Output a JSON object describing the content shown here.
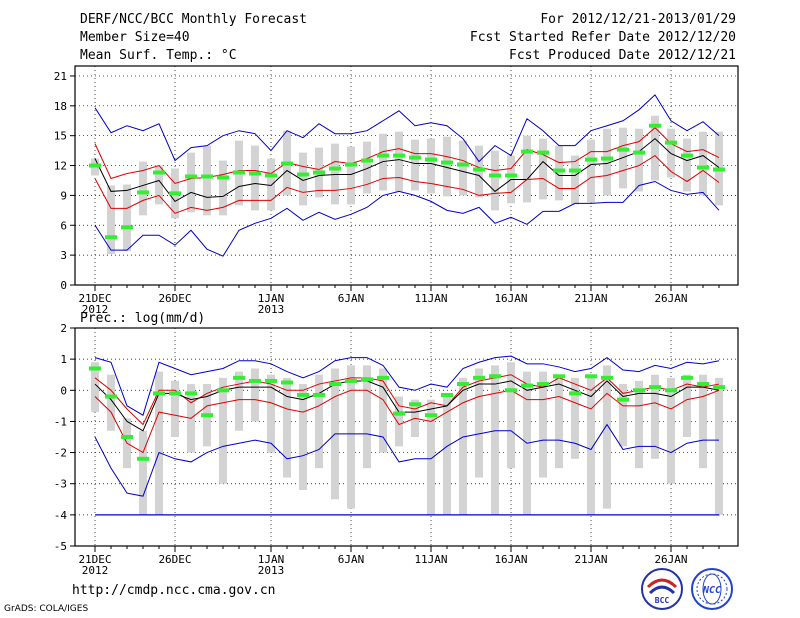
{
  "header": {
    "title": "DERF/NCC/BCC Monthly Forecast",
    "member_size": "Member Size=40",
    "variable": "Mean Surf. Temp.: °C",
    "period": "For 2012/12/21-2013/01/29",
    "start_date": "Fcst Started Refer Date 2012/12/20",
    "produced_date": "Fcst Produced Date 2012/12/21"
  },
  "footer": {
    "url": "http://cmdp.ncc.cma.gov.cn",
    "credit": "GrADS: COLA/IGES",
    "logo_bcc": "BCC",
    "logo_ncc": "NCC"
  },
  "colors": {
    "box": "#d3d3d3",
    "outer": "#0000cc",
    "inner": "#e00000",
    "median": "#000000",
    "obs": "#33ee33"
  },
  "chart_data": [
    {
      "type": "box",
      "title": "Mean Surf. Temp.: °C",
      "xlabel": "",
      "ylabel": "Mean Surf. Temp. (°C)",
      "days": 40,
      "ylim": [
        0,
        22
      ],
      "yticks": [
        0,
        3,
        6,
        9,
        12,
        15,
        18,
        21
      ],
      "xticks": [
        {
          "day": 0,
          "label": "21DEC",
          "sub": "2012"
        },
        {
          "day": 5,
          "label": "26DEC",
          "sub": ""
        },
        {
          "day": 11,
          "label": "1JAN",
          "sub": "2013"
        },
        {
          "day": 16,
          "label": "6JAN",
          "sub": ""
        },
        {
          "day": 21,
          "label": "11JAN",
          "sub": ""
        },
        {
          "day": 26,
          "label": "16JAN",
          "sub": ""
        },
        {
          "day": 31,
          "label": "21JAN",
          "sub": ""
        },
        {
          "day": 36,
          "label": "26JAN",
          "sub": ""
        }
      ],
      "grid": true,
      "series": [
        {
          "name": "max",
          "values": [
            17.8,
            15.3,
            16.0,
            15.5,
            16.2,
            12.5,
            13.8,
            14.0,
            15.0,
            15.5,
            15.2,
            13.5,
            15.5,
            14.8,
            16.2,
            15.2,
            15.2,
            15.5,
            16.5,
            17.5,
            16.0,
            16.3,
            16.0,
            14.7,
            12.4,
            14.0,
            13.0,
            16.7,
            15.5,
            14.0,
            14.0,
            15.5,
            16.0,
            16.5,
            17.6,
            19.1,
            16.5,
            15.5,
            16.4,
            15.0
          ]
        },
        {
          "name": "upper_inner",
          "values": [
            14.2,
            10.7,
            11.2,
            11.5,
            12.0,
            10.2,
            10.7,
            10.8,
            11.1,
            11.5,
            11.5,
            11.2,
            12.3,
            11.9,
            11.6,
            12.4,
            12.2,
            12.7,
            13.4,
            13.7,
            13.2,
            13.2,
            12.9,
            12.5,
            11.8,
            11.5,
            11.7,
            13.6,
            13.1,
            12.3,
            12.4,
            13.4,
            13.4,
            14.0,
            14.4,
            15.8,
            14.2,
            13.4,
            13.6,
            12.8
          ]
        },
        {
          "name": "median",
          "values": [
            12.7,
            9.4,
            9.5,
            10.0,
            10.5,
            8.4,
            9.3,
            8.8,
            8.9,
            9.9,
            10.2,
            10.0,
            11.5,
            10.5,
            11.0,
            11.1,
            11.1,
            11.7,
            12.4,
            12.6,
            12.2,
            12.2,
            11.8,
            11.4,
            11.0,
            9.4,
            10.6,
            10.6,
            12.4,
            11.0,
            11.0,
            12.1,
            12.2,
            12.8,
            13.4,
            14.7,
            13.2,
            12.5,
            13.0,
            11.8
          ]
        },
        {
          "name": "lower_inner",
          "values": [
            10.7,
            7.7,
            7.7,
            8.5,
            9.0,
            7.2,
            7.8,
            7.5,
            7.8,
            8.5,
            8.5,
            8.5,
            9.8,
            9.3,
            9.5,
            9.5,
            9.7,
            10.1,
            10.7,
            10.8,
            10.4,
            10.2,
            9.9,
            9.6,
            9.0,
            9.2,
            9.3,
            10.6,
            10.7,
            9.7,
            9.7,
            10.8,
            11.0,
            11.5,
            12.0,
            13.0,
            11.4,
            10.4,
            11.5,
            10.3
          ]
        },
        {
          "name": "min",
          "values": [
            6.0,
            3.5,
            3.5,
            5.0,
            5.0,
            4.0,
            5.5,
            3.6,
            2.9,
            5.5,
            6.2,
            6.7,
            7.7,
            6.5,
            7.3,
            6.6,
            7.1,
            7.8,
            9.0,
            9.4,
            9.0,
            8.4,
            7.5,
            7.2,
            7.8,
            6.2,
            6.8,
            6.1,
            7.4,
            7.4,
            8.2,
            8.2,
            8.3,
            8.3,
            10.0,
            10.4,
            9.5,
            9.1,
            9.3,
            7.5
          ]
        }
      ],
      "boxes": [
        {
          "low": 11.0,
          "high": 12.7
        },
        {
          "low": 3.1,
          "high": 10.0
        },
        {
          "low": 3.4,
          "high": 10.1
        },
        {
          "low": 7.0,
          "high": 12.4
        },
        {
          "low": 8.1,
          "high": 12.0
        },
        {
          "low": 6.7,
          "high": 11.7
        },
        {
          "low": 7.3,
          "high": 13.3
        },
        {
          "low": 7.0,
          "high": 14.0
        },
        {
          "low": 7.0,
          "high": 12.5
        },
        {
          "low": 8.0,
          "high": 14.5
        },
        {
          "low": 7.5,
          "high": 14.0
        },
        {
          "low": 7.5,
          "high": 12.7
        },
        {
          "low": 9.0,
          "high": 15.5
        },
        {
          "low": 8.0,
          "high": 13.3
        },
        {
          "low": 8.8,
          "high": 13.8
        },
        {
          "low": 8.1,
          "high": 14.2
        },
        {
          "low": 8.1,
          "high": 13.9
        },
        {
          "low": 9.2,
          "high": 14.4
        },
        {
          "low": 9.5,
          "high": 15.2
        },
        {
          "low": 9.4,
          "high": 15.4
        },
        {
          "low": 9.5,
          "high": 14.6
        },
        {
          "low": 9.2,
          "high": 14.7
        },
        {
          "low": 8.9,
          "high": 14.9
        },
        {
          "low": 9.0,
          "high": 14.5
        },
        {
          "low": 8.8,
          "high": 14.0
        },
        {
          "low": 7.5,
          "high": 13.5
        },
        {
          "low": 8.2,
          "high": 13.0
        },
        {
          "low": 8.3,
          "high": 15.0
        },
        {
          "low": 8.6,
          "high": 14.7
        },
        {
          "low": 8.5,
          "high": 14.0
        },
        {
          "low": 8.1,
          "high": 13.0
        },
        {
          "low": 8.3,
          "high": 14.6
        },
        {
          "low": 9.0,
          "high": 15.7
        },
        {
          "low": 9.7,
          "high": 15.8
        },
        {
          "low": 9.4,
          "high": 15.7
        },
        {
          "low": 10.5,
          "high": 17.0
        },
        {
          "low": 10.8,
          "high": 15.7
        },
        {
          "low": 9.4,
          "high": 14.7
        },
        {
          "low": 9.0,
          "high": 15.4
        },
        {
          "low": 8.0,
          "high": 15.4
        }
      ],
      "observed": [
        12.0,
        4.8,
        5.8,
        9.3,
        11.3,
        9.2,
        10.9,
        10.9,
        10.8,
        11.3,
        11.2,
        11.0,
        12.2,
        11.1,
        11.3,
        11.7,
        12.1,
        12.5,
        13.0,
        13.0,
        12.8,
        12.6,
        12.3,
        12.1,
        11.6,
        11.0,
        11.0,
        13.4,
        13.3,
        11.5,
        11.5,
        12.6,
        12.7,
        13.6,
        13.3,
        16.0,
        14.3,
        13.0,
        11.8,
        11.6
      ]
    },
    {
      "type": "box",
      "title": "Prec.: log(mm/d)",
      "xlabel": "",
      "ylabel": "log(mm/d)",
      "days": 40,
      "ylim": [
        -5,
        2
      ],
      "yticks": [
        -5,
        -4,
        -3,
        -2,
        -1,
        0,
        1,
        2
      ],
      "xticks": [
        {
          "day": 0,
          "label": "21DEC",
          "sub": "2012"
        },
        {
          "day": 5,
          "label": "26DEC",
          "sub": ""
        },
        {
          "day": 11,
          "label": "1JAN",
          "sub": "2013"
        },
        {
          "day": 16,
          "label": "6JAN",
          "sub": ""
        },
        {
          "day": 21,
          "label": "11JAN",
          "sub": ""
        },
        {
          "day": 26,
          "label": "16JAN",
          "sub": ""
        },
        {
          "day": 31,
          "label": "21JAN",
          "sub": ""
        },
        {
          "day": 36,
          "label": "26JAN",
          "sub": ""
        }
      ],
      "grid": true,
      "series": [
        {
          "name": "max",
          "values": [
            1.05,
            0.9,
            -0.5,
            -0.8,
            0.9,
            0.7,
            0.5,
            0.6,
            0.7,
            0.95,
            0.95,
            0.85,
            0.6,
            0.4,
            0.6,
            0.95,
            1.05,
            1.05,
            0.8,
            0.1,
            0.0,
            0.2,
            0.1,
            0.7,
            0.9,
            1.05,
            1.1,
            0.85,
            0.85,
            0.75,
            0.6,
            0.7,
            1.05,
            0.65,
            0.6,
            0.8,
            0.7,
            0.9,
            0.85,
            0.95
          ]
        },
        {
          "name": "upper_inner",
          "values": [
            0.4,
            0.0,
            -0.6,
            -1.1,
            0.0,
            0.0,
            -0.4,
            -0.1,
            0.1,
            0.2,
            0.3,
            0.2,
            0.0,
            0.0,
            0.2,
            0.3,
            0.4,
            0.4,
            0.3,
            -0.5,
            -0.6,
            -0.4,
            -0.5,
            0.1,
            0.3,
            0.4,
            0.5,
            0.2,
            0.1,
            0.4,
            0.2,
            0.0,
            0.4,
            -0.1,
            0.0,
            0.1,
            0.0,
            0.2,
            0.1,
            0.2
          ]
        },
        {
          "name": "median",
          "values": [
            0.2,
            -0.3,
            -1.0,
            -1.3,
            -0.1,
            -0.1,
            -0.3,
            -0.2,
            0.0,
            0.1,
            0.1,
            0.1,
            -0.2,
            -0.3,
            -0.1,
            0.2,
            0.3,
            0.3,
            0.1,
            -0.7,
            -0.7,
            -0.6,
            -0.5,
            0.0,
            0.2,
            0.2,
            0.3,
            0.0,
            0.1,
            0.2,
            0.0,
            -0.2,
            0.3,
            -0.2,
            -0.1,
            -0.1,
            -0.2,
            0.1,
            0.1,
            0.0
          ]
        },
        {
          "name": "lower_inner",
          "values": [
            -0.2,
            -0.7,
            -1.7,
            -2.0,
            -0.7,
            -0.8,
            -0.9,
            -0.5,
            -0.4,
            -0.3,
            -0.3,
            -0.4,
            -0.6,
            -0.7,
            -0.5,
            -0.2,
            0.0,
            0.0,
            -0.3,
            -1.1,
            -0.9,
            -1.0,
            -0.7,
            -0.4,
            -0.2,
            -0.1,
            0.0,
            -0.3,
            -0.3,
            -0.2,
            -0.4,
            -0.6,
            -0.1,
            -0.5,
            -0.5,
            -0.4,
            -0.6,
            -0.3,
            -0.2,
            0.0
          ]
        },
        {
          "name": "min",
          "values": [
            -1.5,
            -2.5,
            -3.3,
            -3.4,
            -2.0,
            -2.2,
            -2.3,
            -2.0,
            -1.8,
            -1.7,
            -1.6,
            -1.7,
            -2.2,
            -2.1,
            -1.9,
            -1.4,
            -1.4,
            -1.4,
            -1.5,
            -2.3,
            -2.2,
            -2.2,
            -1.8,
            -1.5,
            -1.4,
            -1.3,
            -1.3,
            -1.7,
            -1.6,
            -1.6,
            -1.7,
            -1.9,
            -1.1,
            -1.9,
            -1.8,
            -1.8,
            -2.0,
            -1.7,
            -1.6,
            -1.6
          ]
        },
        {
          "name": "floor",
          "values": [
            -4.0,
            -4.0,
            -4.0,
            -4.0,
            -4.0,
            -4.0,
            -4.0,
            -4.0,
            -4.0,
            -4.0,
            -4.0,
            -4.0,
            -4.0,
            -4.0,
            -4.0,
            -4.0,
            -4.0,
            -4.0,
            -4.0,
            -4.0,
            -4.0,
            -4.0,
            -4.0,
            -4.0,
            -4.0,
            -4.0,
            -4.0,
            -4.0,
            -4.0,
            -4.0,
            -4.0,
            -4.0,
            -4.0,
            -4.0,
            -4.0,
            -4.0,
            -4.0,
            -4.0,
            -4.0,
            -4.0
          ]
        }
      ],
      "boxes": [
        {
          "low": -0.7,
          "high": 0.9
        },
        {
          "low": -1.3,
          "high": 0.5
        },
        {
          "low": -2.5,
          "high": -0.9
        },
        {
          "low": -4.0,
          "high": -1.3
        },
        {
          "low": -4.0,
          "high": 0.6
        },
        {
          "low": -1.5,
          "high": 0.3
        },
        {
          "low": -2.0,
          "high": 0.2
        },
        {
          "low": -1.8,
          "high": 0.2
        },
        {
          "low": -3.0,
          "high": 0.4
        },
        {
          "low": -1.3,
          "high": 0.6
        },
        {
          "low": -1.0,
          "high": 0.7
        },
        {
          "low": -2.0,
          "high": 0.5
        },
        {
          "low": -2.8,
          "high": 0.4
        },
        {
          "low": -3.2,
          "high": 0.2
        },
        {
          "low": -2.5,
          "high": 0.5
        },
        {
          "low": -3.5,
          "high": 0.7
        },
        {
          "low": -3.8,
          "high": 0.8
        },
        {
          "low": -2.5,
          "high": 0.8
        },
        {
          "low": -2.0,
          "high": 0.7
        },
        {
          "low": -1.8,
          "high": -0.2
        },
        {
          "low": -1.5,
          "high": -0.3
        },
        {
          "low": -4.0,
          "high": -0.3
        },
        {
          "low": -4.0,
          "high": -0.1
        },
        {
          "low": -4.0,
          "high": 0.4
        },
        {
          "low": -2.8,
          "high": 0.7
        },
        {
          "low": -4.0,
          "high": 0.8
        },
        {
          "low": -2.5,
          "high": 0.9
        },
        {
          "low": -4.0,
          "high": 0.6
        },
        {
          "low": -2.8,
          "high": 0.6
        },
        {
          "low": -2.5,
          "high": 0.5
        },
        {
          "low": -2.2,
          "high": 0.4
        },
        {
          "low": -4.0,
          "high": 0.5
        },
        {
          "low": -3.8,
          "high": 0.8
        },
        {
          "low": -1.8,
          "high": 0.2
        },
        {
          "low": -2.5,
          "high": 0.3
        },
        {
          "low": -2.2,
          "high": 0.5
        },
        {
          "low": -3.0,
          "high": 0.4
        },
        {
          "low": -1.5,
          "high": 0.5
        },
        {
          "low": -2.5,
          "high": 0.5
        },
        {
          "low": -4.0,
          "high": 0.4
        }
      ],
      "observed": [
        0.7,
        -0.2,
        -1.5,
        -2.2,
        -0.1,
        -0.1,
        -0.1,
        -0.8,
        0.0,
        0.4,
        0.3,
        0.3,
        0.25,
        -0.15,
        -0.15,
        0.2,
        0.3,
        0.35,
        0.4,
        -0.75,
        -0.45,
        -0.8,
        -0.15,
        0.2,
        0.4,
        0.45,
        0.0,
        0.15,
        0.2,
        0.45,
        -0.1,
        0.45,
        0.4,
        -0.3,
        0.0,
        0.1,
        0.0,
        0.4,
        0.2,
        0.1
      ]
    }
  ]
}
